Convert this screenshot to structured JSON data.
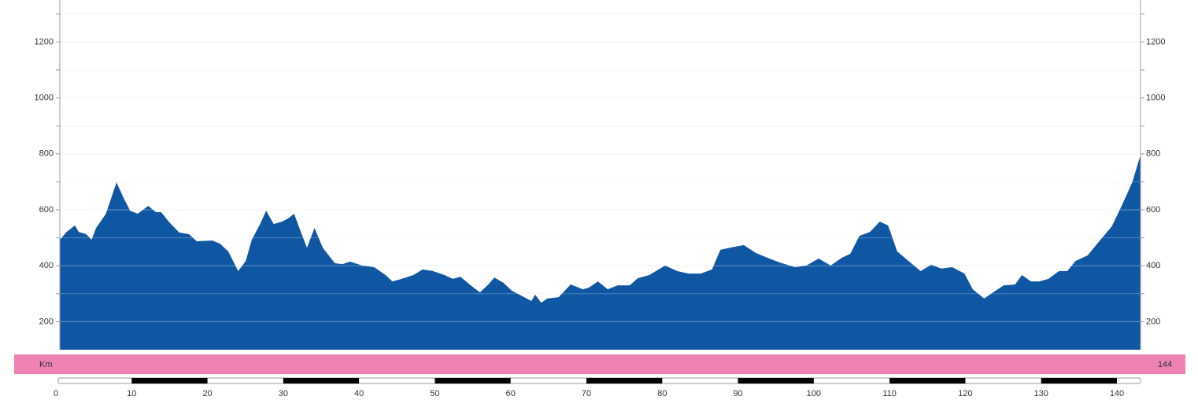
{
  "chart_data": {
    "type": "area",
    "color": "#1057a3",
    "x": [
      0,
      0.9,
      2.0,
      2.5,
      3.5,
      4.2,
      4.8,
      6.1,
      7.5,
      8.5,
      9.3,
      10.3,
      11.7,
      12.7,
      13.4,
      14.5,
      15.8,
      17.1,
      18.1,
      20.2,
      21.2,
      22.3,
      23.6,
      24.6,
      25.4,
      26.5,
      27.3,
      28.3,
      29.4,
      30.2,
      31.0,
      31.7,
      32.7,
      33.7,
      34.8,
      36.4,
      37.4,
      38.4,
      40.0,
      41.6,
      43.1,
      44.0,
      45.2,
      46.8,
      48.0,
      49.4,
      50.9,
      52.0,
      53.0,
      54.6,
      55.6,
      56.7,
      57.5,
      58.7,
      59.8,
      60.8,
      62.4,
      62.9,
      63.7,
      64.5,
      66.0,
      67.6,
      69.2,
      70.0,
      71.2,
      72.5,
      73.8,
      75.4,
      76.5,
      78.0,
      80.1,
      81.7,
      83.2,
      84.8,
      86.3,
      87.4,
      88.9,
      90.5,
      92.1,
      93.6,
      95.2,
      97.3,
      98.8,
      100.4,
      102.0,
      103.5,
      104.6,
      105.8,
      107.2,
      108.5,
      109.6,
      110.8,
      112.4,
      113.9,
      115.3,
      116.6,
      118.1,
      119.7,
      120.8,
      122.3,
      123.5,
      124.9,
      126.4,
      127.3,
      128.5,
      129.6,
      130.8,
      132.2,
      133.3,
      134.4,
      136.0,
      137.7,
      139.2,
      140.5,
      141.9,
      143.0
    ],
    "values": [
      493,
      521,
      544,
      521,
      513,
      493,
      535,
      586,
      698,
      639,
      597,
      586,
      614,
      592,
      592,
      555,
      519,
      513,
      488,
      490,
      479,
      451,
      381,
      417,
      493,
      549,
      597,
      549,
      558,
      569,
      586,
      535,
      464,
      535,
      464,
      409,
      406,
      415,
      401,
      395,
      367,
      344,
      353,
      367,
      387,
      381,
      367,
      353,
      361,
      325,
      305,
      333,
      358,
      339,
      311,
      297,
      274,
      297,
      268,
      283,
      288,
      333,
      316,
      322,
      344,
      316,
      330,
      330,
      356,
      367,
      401,
      381,
      372,
      372,
      387,
      457,
      466,
      474,
      446,
      429,
      412,
      395,
      401,
      426,
      401,
      429,
      443,
      507,
      521,
      558,
      544,
      451,
      415,
      381,
      404,
      390,
      395,
      372,
      316,
      283,
      305,
      330,
      333,
      367,
      344,
      344,
      353,
      381,
      381,
      417,
      437,
      493,
      541,
      614,
      698,
      796
    ],
    "xlim": [
      0,
      143
    ],
    "ylim": [
      100,
      1350
    ],
    "yticks": [
      200,
      400,
      600,
      800,
      1000,
      1200
    ],
    "yminor_ticks": [
      300,
      500,
      700,
      900,
      1100,
      1300
    ],
    "xticks": [
      0,
      10,
      20,
      30,
      40,
      50,
      60,
      70,
      80,
      90,
      100,
      110,
      120,
      130,
      140
    ],
    "grid": true,
    "band_label": "Km",
    "total_distance": 144
  }
}
